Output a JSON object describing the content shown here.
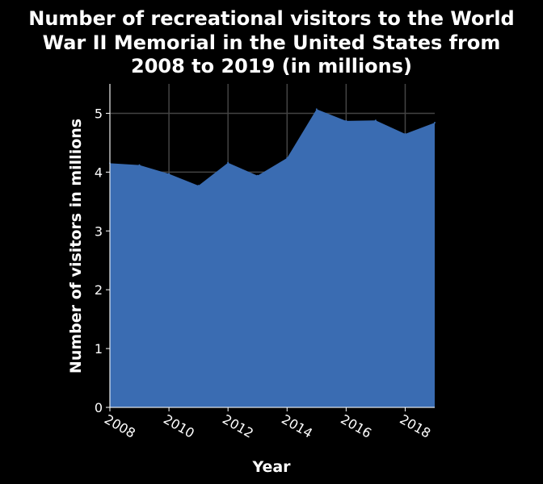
{
  "chart_data": {
    "type": "area",
    "title_lines": [
      "Number of recreational visitors to the World",
      "War II Memorial in the United States from",
      "2008 to 2019 (in millions)"
    ],
    "xlabel": "Year",
    "ylabel": "Number of visitors in millions",
    "x": [
      2008,
      2009,
      2010,
      2011,
      2012,
      2013,
      2014,
      2015,
      2016,
      2017,
      2018,
      2019
    ],
    "values": [
      4.15,
      4.12,
      3.97,
      3.77,
      4.16,
      3.94,
      4.24,
      5.07,
      4.87,
      4.88,
      4.65,
      4.84
    ],
    "xlim": [
      2008,
      2019
    ],
    "ylim": [
      0,
      5.5
    ],
    "x_ticks": [
      2008,
      2010,
      2012,
      2014,
      2016,
      2018
    ],
    "y_ticks": [
      0,
      1,
      2,
      3,
      4,
      5
    ],
    "grid": true,
    "colors": {
      "fill": "#3a6cb2",
      "grid": "#444444",
      "axis": "#ffffff",
      "background": "#000000",
      "text": "#ffffff"
    }
  }
}
